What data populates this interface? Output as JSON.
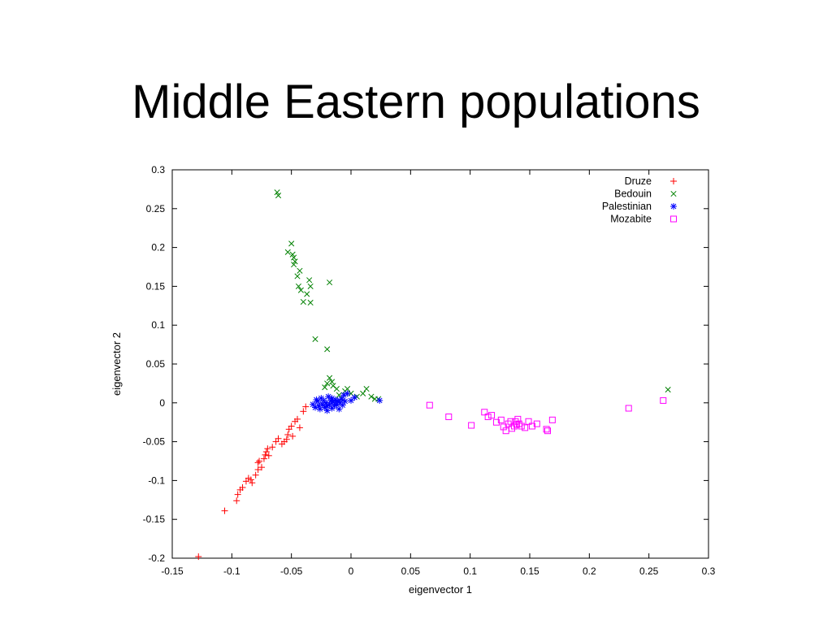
{
  "title": "Middle Eastern populations",
  "chart_data": {
    "type": "scatter",
    "xlabel": "eigenvector 1",
    "ylabel": "eigenvector 2",
    "xlim": [
      -0.15,
      0.3
    ],
    "ylim": [
      -0.2,
      0.3
    ],
    "xticks": [
      -0.15,
      -0.1,
      -0.05,
      0,
      0.05,
      0.1,
      0.15,
      0.2,
      0.25,
      0.3
    ],
    "xtick_labels": [
      "-0.15",
      "-0.1",
      "-0.05",
      "0",
      "0.05",
      "0.1",
      "0.15",
      "0.2",
      "0.25",
      "0.3"
    ],
    "yticks": [
      -0.2,
      -0.15,
      -0.1,
      -0.05,
      0,
      0.05,
      0.1,
      0.15,
      0.2,
      0.25,
      0.3
    ],
    "ytick_labels": [
      "-0.2",
      "-0.15",
      "-0.1",
      "-0.05",
      "0",
      "0.05",
      "0.1",
      "0.15",
      "0.2",
      "0.25",
      "0.3"
    ],
    "grid": false,
    "legend_position": "top-right",
    "series": [
      {
        "name": "Druze",
        "marker": "plus",
        "color": "#ff0000",
        "points": [
          [
            -0.128,
            -0.198
          ],
          [
            -0.106,
            -0.139
          ],
          [
            -0.096,
            -0.126
          ],
          [
            -0.095,
            -0.118
          ],
          [
            -0.093,
            -0.112
          ],
          [
            -0.091,
            -0.109
          ],
          [
            -0.088,
            -0.101
          ],
          [
            -0.086,
            -0.097
          ],
          [
            -0.084,
            -0.099
          ],
          [
            -0.083,
            -0.103
          ],
          [
            -0.08,
            -0.093
          ],
          [
            -0.078,
            -0.086
          ],
          [
            -0.078,
            -0.077
          ],
          [
            -0.077,
            -0.075
          ],
          [
            -0.075,
            -0.083
          ],
          [
            -0.073,
            -0.072
          ],
          [
            -0.072,
            -0.067
          ],
          [
            -0.071,
            -0.063
          ],
          [
            -0.07,
            -0.059
          ],
          [
            -0.069,
            -0.068
          ],
          [
            -0.066,
            -0.057
          ],
          [
            -0.063,
            -0.05
          ],
          [
            -0.061,
            -0.046
          ],
          [
            -0.058,
            -0.053
          ],
          [
            -0.056,
            -0.05
          ],
          [
            -0.054,
            -0.047
          ],
          [
            -0.053,
            -0.041
          ],
          [
            -0.052,
            -0.034
          ],
          [
            -0.05,
            -0.03
          ],
          [
            -0.049,
            -0.043
          ],
          [
            -0.047,
            -0.024
          ],
          [
            -0.045,
            -0.021
          ],
          [
            -0.043,
            -0.032
          ],
          [
            -0.04,
            -0.011
          ],
          [
            -0.038,
            -0.005
          ]
        ]
      },
      {
        "name": "Bedouin",
        "marker": "cross",
        "color": "#008000",
        "points": [
          [
            -0.062,
            0.271
          ],
          [
            -0.061,
            0.267
          ],
          [
            -0.053,
            0.194
          ],
          [
            -0.05,
            0.205
          ],
          [
            -0.049,
            0.191
          ],
          [
            -0.048,
            0.187
          ],
          [
            -0.047,
            0.182
          ],
          [
            -0.048,
            0.178
          ],
          [
            -0.045,
            0.163
          ],
          [
            -0.043,
            0.17
          ],
          [
            -0.044,
            0.15
          ],
          [
            -0.042,
            0.145
          ],
          [
            -0.04,
            0.13
          ],
          [
            -0.037,
            0.14
          ],
          [
            -0.035,
            0.158
          ],
          [
            -0.034,
            0.15
          ],
          [
            -0.034,
            0.129
          ],
          [
            -0.018,
            0.155
          ],
          [
            -0.03,
            0.082
          ],
          [
            -0.02,
            0.069
          ],
          [
            -0.022,
            0.02
          ],
          [
            -0.02,
            0.025
          ],
          [
            -0.018,
            0.032
          ],
          [
            -0.016,
            0.027
          ],
          [
            -0.015,
            0.022
          ],
          [
            -0.012,
            0.018
          ],
          [
            -0.01,
            0.01
          ],
          [
            -0.008,
            0.005
          ],
          [
            -0.005,
            0.015
          ],
          [
            -0.003,
            0.018
          ],
          [
            0.0,
            0.012
          ],
          [
            0.005,
            0.008
          ],
          [
            0.01,
            0.012
          ],
          [
            0.013,
            0.018
          ],
          [
            0.017,
            0.008
          ],
          [
            0.02,
            0.005
          ],
          [
            0.023,
            0.005
          ],
          [
            0.266,
            0.017
          ]
        ]
      },
      {
        "name": "Palestinian",
        "marker": "star",
        "color": "#0000ff",
        "points": [
          [
            -0.032,
            -0.002
          ],
          [
            -0.03,
            -0.006
          ],
          [
            -0.028,
            0.002
          ],
          [
            -0.027,
            -0.004
          ],
          [
            -0.026,
            -0.008
          ],
          [
            -0.025,
            0.006
          ],
          [
            -0.024,
            -0.002
          ],
          [
            -0.023,
            0.003
          ],
          [
            -0.022,
            -0.006
          ],
          [
            -0.021,
            0.0
          ],
          [
            -0.02,
            -0.004
          ],
          [
            -0.019,
            0.008
          ],
          [
            -0.018,
            -0.002
          ],
          [
            -0.017,
            0.003
          ],
          [
            -0.016,
            -0.007
          ],
          [
            -0.015,
            0.001
          ],
          [
            -0.014,
            -0.004
          ],
          [
            -0.013,
            0.004
          ],
          [
            -0.012,
            -0.002
          ],
          [
            -0.011,
            0.002
          ],
          [
            -0.01,
            -0.008
          ],
          [
            -0.009,
            0.0
          ],
          [
            -0.008,
            0.005
          ],
          [
            -0.007,
            -0.003
          ],
          [
            -0.006,
            0.01
          ],
          [
            -0.005,
            0.002
          ],
          [
            -0.003,
            0.012
          ],
          [
            0.0,
            0.003
          ],
          [
            0.003,
            0.007
          ],
          [
            0.024,
            0.003
          ],
          [
            -0.029,
            0.004
          ],
          [
            -0.016,
            0.006
          ],
          [
            -0.02,
            -0.01
          ]
        ]
      },
      {
        "name": "Mozabite",
        "marker": "square",
        "color": "#ff00ff",
        "points": [
          [
            0.066,
            -0.003
          ],
          [
            0.082,
            -0.018
          ],
          [
            0.101,
            -0.029
          ],
          [
            0.112,
            -0.012
          ],
          [
            0.115,
            -0.018
          ],
          [
            0.118,
            -0.016
          ],
          [
            0.122,
            -0.025
          ],
          [
            0.126,
            -0.022
          ],
          [
            0.128,
            -0.031
          ],
          [
            0.13,
            -0.036
          ],
          [
            0.132,
            -0.027
          ],
          [
            0.134,
            -0.024
          ],
          [
            0.135,
            -0.033
          ],
          [
            0.137,
            -0.03
          ],
          [
            0.138,
            -0.024
          ],
          [
            0.139,
            -0.028
          ],
          [
            0.14,
            -0.021
          ],
          [
            0.141,
            -0.027
          ],
          [
            0.143,
            -0.03
          ],
          [
            0.146,
            -0.032
          ],
          [
            0.149,
            -0.024
          ],
          [
            0.152,
            -0.03
          ],
          [
            0.156,
            -0.027
          ],
          [
            0.164,
            -0.034
          ],
          [
            0.165,
            -0.036
          ],
          [
            0.169,
            -0.022
          ],
          [
            0.233,
            -0.007
          ],
          [
            0.262,
            0.003
          ]
        ]
      }
    ]
  }
}
